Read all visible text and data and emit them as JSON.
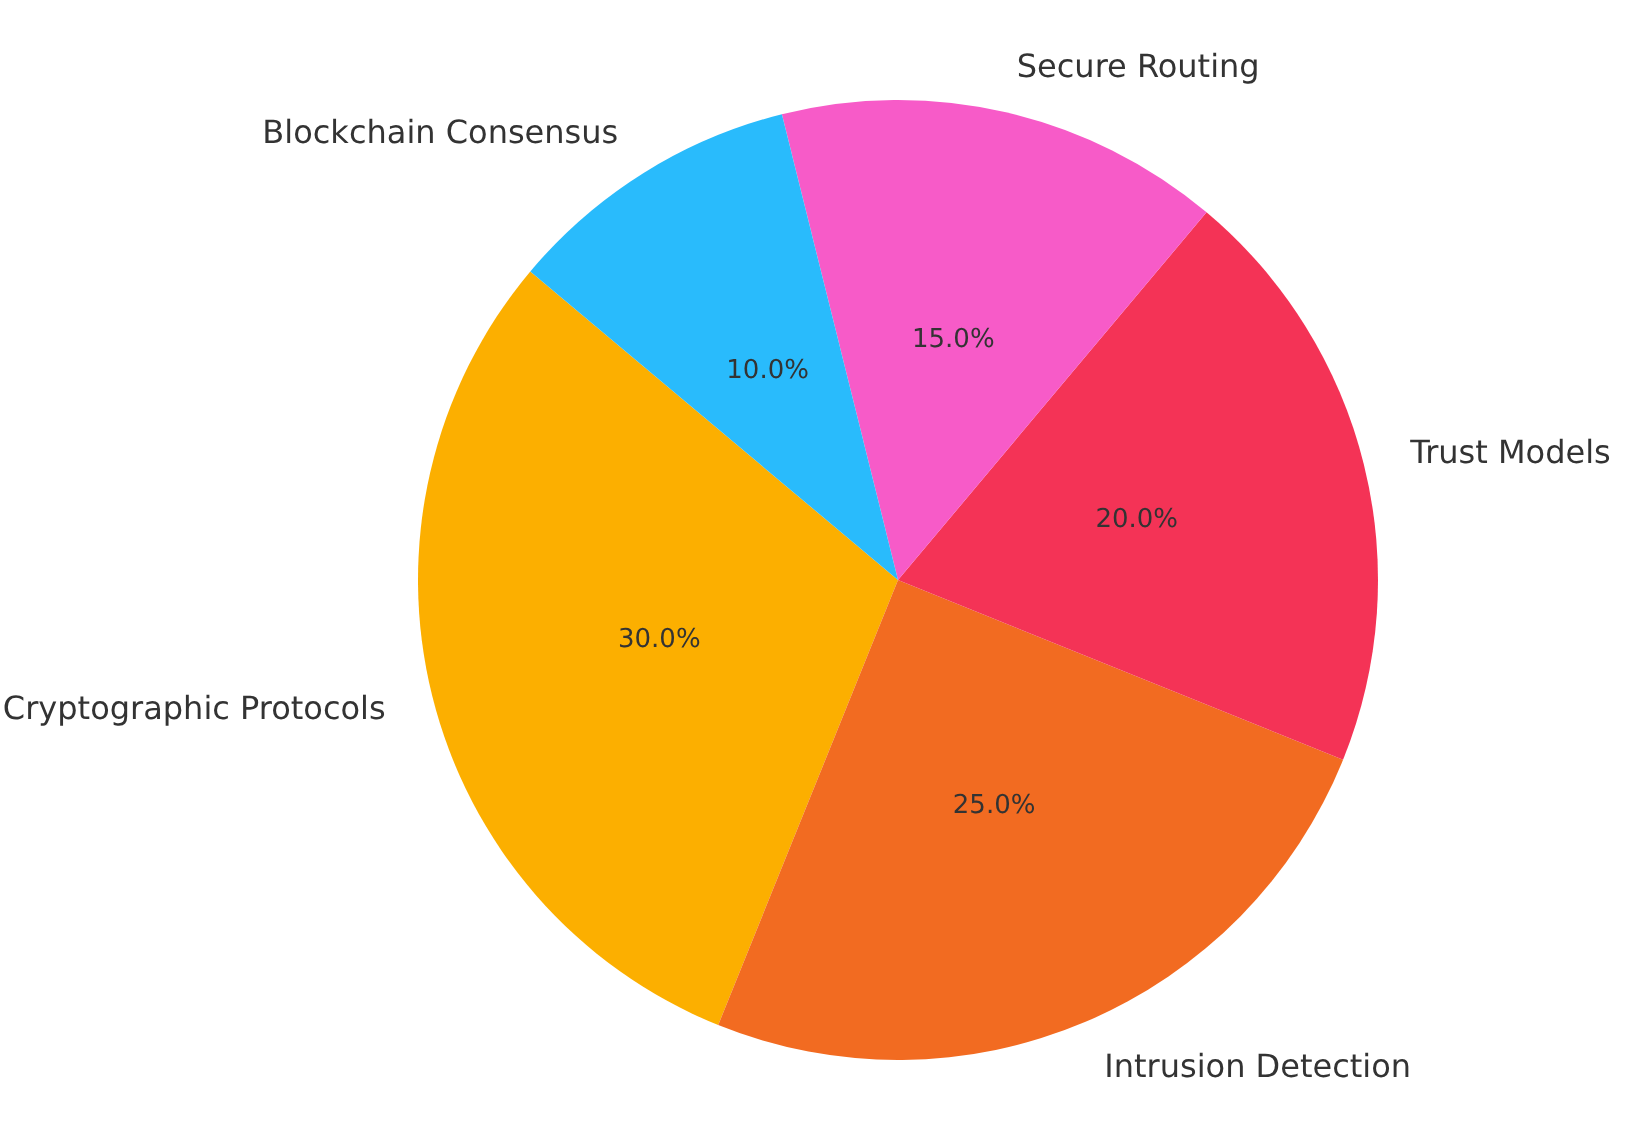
{
  "chart_data": {
    "type": "pie",
    "categories": [
      "Cryptographic Protocols",
      "Intrusion Detection",
      "Trust Models",
      "Secure Routing",
      "Blockchain Consensus"
    ],
    "values": [
      30,
      25,
      20,
      15,
      10
    ],
    "value_labels": [
      "30.0%",
      "25.0%",
      "20.0%",
      "15.0%",
      "10.0%"
    ],
    "colors": [
      "#fcaf00",
      "#f26b21",
      "#f43356",
      "#f75bc8",
      "#29bbfc"
    ],
    "legend": false
  }
}
